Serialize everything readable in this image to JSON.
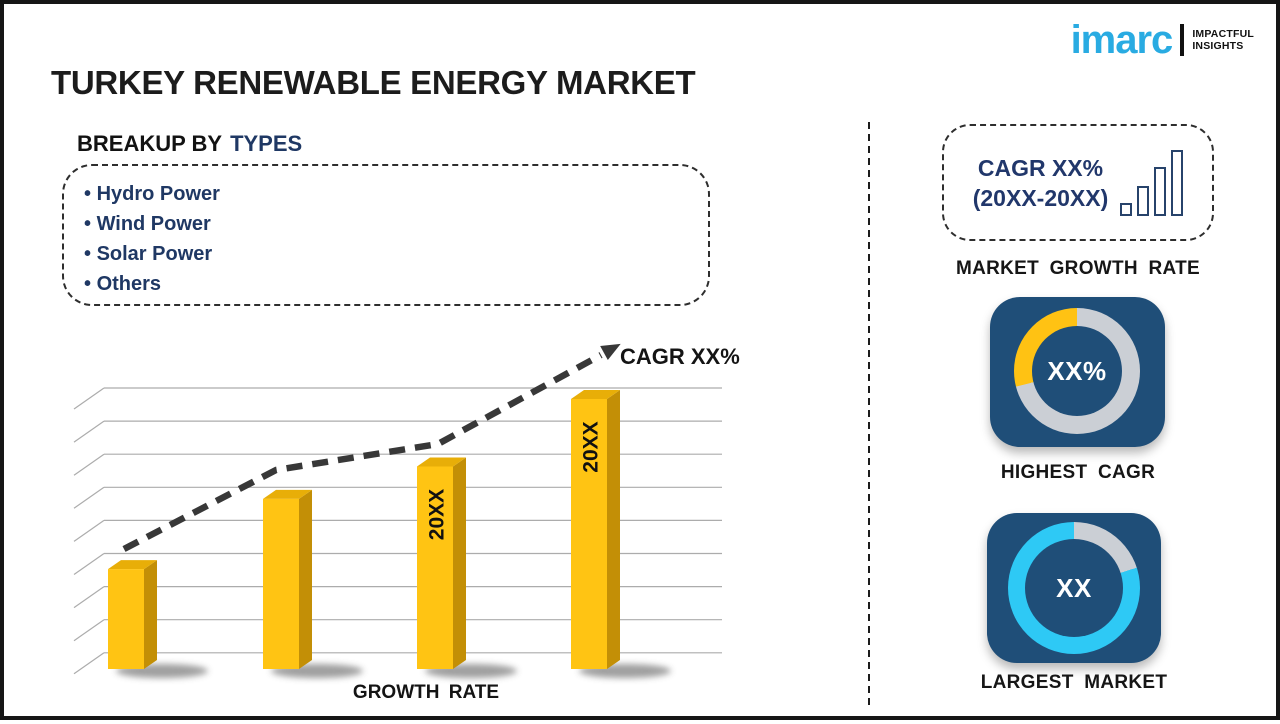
{
  "header": {
    "title": "TURKEY RENEWABLE ENERGY MARKET",
    "logo": {
      "brand": "imarc",
      "tagline1": "IMPACTFUL",
      "tagline2": "INSIGHTS",
      "brand_color": "#29ABE2"
    }
  },
  "breakup": {
    "heading_prefix": "BREAKUP BY",
    "heading_highlight": "TYPES",
    "items": [
      "Hydro Power",
      "Wind Power",
      "Solar Power",
      "Others"
    ]
  },
  "chart_data": {
    "type": "bar",
    "title": "",
    "xlabel": "GROWTH RATE",
    "ylabel": "",
    "categories": [
      "",
      "",
      "20XX",
      "20XX"
    ],
    "bar_labels": [
      "",
      "",
      "20XX",
      "20XX"
    ],
    "values_relative_pct": [
      37,
      63,
      75,
      100
    ],
    "trend_label": "CAGR XX%",
    "grid": true,
    "legend": "none",
    "bar_color": "#FFC413",
    "bar_side_color": "#C38F06",
    "bar_top_color": "#E8AE08",
    "trend_color": "#383838",
    "gridline_color": "#ACACAC"
  },
  "sidebar": {
    "growth_card": {
      "line1": "CAGR XX%",
      "line2": "(20XX-20XX)",
      "caption": "MARKET GROWTH RATE"
    },
    "highest_cagr": {
      "value": "XX%",
      "caption": "HIGHEST CAGR",
      "arc_color": "#FFC213",
      "arc_pct": 29,
      "ring_color": "#CBCFD5"
    },
    "largest_market": {
      "value": "XX",
      "caption": "LARGEST MARKET",
      "arc_color": "#2EC9F5",
      "arc_pct": 80,
      "ring_color": "#CBCFD5"
    }
  }
}
